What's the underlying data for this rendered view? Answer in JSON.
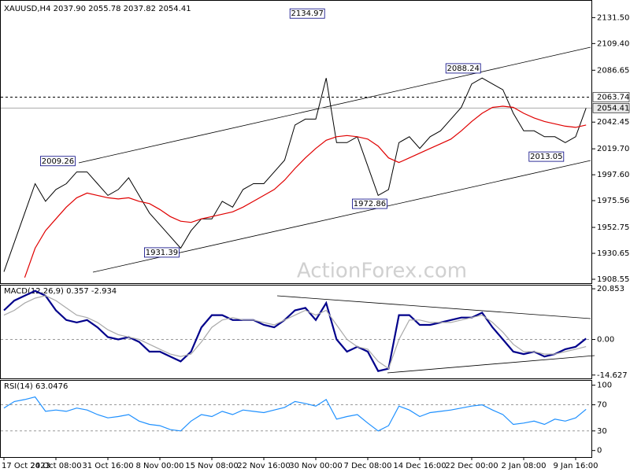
{
  "chart_data": [
    {
      "type": "line",
      "title": "XAUUSD,H4 2037.90 2055.78 2037.82 2054.41",
      "watermark": "ActionForex.com",
      "categories": [
        "17 Oct 2023",
        null,
        null,
        null,
        null,
        "24 Oct 08:00",
        null,
        null,
        null,
        null,
        "31 Oct 16:00",
        null,
        null,
        null,
        null,
        "8 Nov 00:00",
        null,
        null,
        null,
        null,
        "15 Nov 08:00",
        null,
        null,
        null,
        null,
        "22 Nov 16:00",
        null,
        null,
        null,
        null,
        "30 Nov 00:00",
        null,
        null,
        null,
        null,
        "7 Dec 08:00",
        null,
        null,
        null,
        null,
        "14 Dec 16:00",
        null,
        null,
        null,
        null,
        "22 Dec 00:00",
        null,
        null,
        null,
        null,
        "2 Jan 08:00",
        null,
        null,
        null,
        null,
        "9 Jan 16:00",
        null
      ],
      "series": [
        {
          "color": "#000000",
          "values": [
            1915,
            1940,
            1965,
            1990,
            1975,
            1985,
            1990,
            2000,
            2000,
            1990,
            1980,
            1985,
            1995,
            1980,
            1965,
            1955,
            1945,
            1935,
            1950,
            1960,
            1960,
            1975,
            1970,
            1985,
            1990,
            1990,
            2000,
            2010,
            2040,
            2045,
            2045,
            2080,
            2025,
            2025,
            2030,
            2005,
            1980,
            1985,
            2025,
            2030,
            2020,
            2030,
            2035,
            2045,
            2055,
            2075,
            2080,
            2075,
            2070,
            2050,
            2035,
            2035,
            2030,
            2030,
            2025,
            2030,
            2054.41
          ]
        },
        {
          "color": "#e00000",
          "values": [
            null,
            null,
            1910,
            1935,
            1950,
            1960,
            1970,
            1978,
            1982,
            1980,
            1978,
            1977,
            1978,
            1975,
            1973,
            1968,
            1962,
            1958,
            1957,
            1960,
            1962,
            1964,
            1966,
            1970,
            1975,
            1980,
            1985,
            1993,
            2003,
            2012,
            2020,
            2027,
            2030,
            2031,
            2030,
            2028,
            2022,
            2012,
            2008,
            2012,
            2016,
            2020,
            2024,
            2028,
            2035,
            2043,
            2050,
            2055,
            2056,
            2055,
            2050,
            2046,
            2043,
            2041,
            2039,
            2038,
            2040
          ]
        }
      ],
      "annotations": [
        {
          "value": 2134.97,
          "x": 31
        },
        {
          "value": 2009.26,
          "x": 7
        },
        {
          "value": 1931.39,
          "x": 17
        },
        {
          "value": 1972.86,
          "x": 37
        },
        {
          "value": 2088.24,
          "x": 46
        },
        {
          "value": 2013.05,
          "x": 54
        }
      ],
      "levels": [
        {
          "value": 2063.74,
          "dashed": true
        },
        {
          "value": 2054.41,
          "dashed": false
        }
      ],
      "ylim": [
        1905.2,
        2146.5
      ],
      "yticks": [
        {
          "value": 2131.5,
          "label": "2131.50"
        },
        {
          "value": 2109.4,
          "label": "2109.40"
        },
        2086.65,
        2042.45,
        {
          "value": 2019.7,
          "label": "2019.70"
        },
        {
          "value": 1997.6,
          "label": "1997.60"
        },
        1975.56,
        1952.75,
        1930.65,
        1908.55
      ]
    },
    {
      "type": "line",
      "title": "MACD(12,26,9) 0.357 -2.934",
      "series": [
        {
          "color": "#00008b",
          "values": [
            12,
            16,
            18,
            20,
            18,
            12,
            8,
            7,
            8,
            5,
            1,
            0,
            1,
            -1,
            -5,
            -5,
            -7,
            -9,
            -5,
            5,
            10,
            10,
            8,
            8,
            8,
            6,
            5,
            8,
            12,
            13,
            8,
            15,
            0,
            -5,
            -3,
            -5,
            -13,
            -12,
            10,
            10,
            6,
            6,
            7,
            8,
            9,
            9,
            11,
            5,
            0,
            -5,
            -6,
            -5,
            -7,
            -6,
            -4,
            -3,
            0.357
          ]
        },
        {
          "color": "#a9a9a9",
          "values": [
            10,
            12,
            15,
            17,
            18,
            16,
            13,
            10,
            9,
            7,
            4,
            2,
            1,
            0,
            -2,
            -4,
            -6,
            -7,
            -6,
            -1,
            5,
            8,
            9,
            8,
            8,
            7,
            6,
            8,
            10,
            12,
            10,
            12,
            6,
            0,
            -3,
            -4,
            -9,
            -12,
            0,
            8,
            8,
            7,
            7,
            7,
            8,
            9,
            10,
            7,
            3,
            -2,
            -5,
            -5,
            -6,
            -6,
            -5,
            -4,
            -2.934
          ]
        }
      ],
      "ylim": [
        -16,
        22.5
      ],
      "yticks": [
        20.853,
        {
          "value": 0,
          "label": "0.00"
        },
        -14.627
      ]
    },
    {
      "type": "line",
      "title": "RSI(14) 63.0476",
      "series": [
        {
          "color": "#1e90ff",
          "values": [
            65,
            75,
            78,
            82,
            60,
            62,
            60,
            65,
            62,
            55,
            50,
            52,
            55,
            45,
            40,
            38,
            32,
            30,
            45,
            55,
            52,
            60,
            55,
            62,
            60,
            58,
            62,
            66,
            75,
            72,
            68,
            78,
            48,
            52,
            55,
            42,
            30,
            38,
            68,
            62,
            52,
            58,
            60,
            62,
            65,
            68,
            70,
            62,
            55,
            40,
            42,
            45,
            40,
            48,
            45,
            50,
            63.0476
          ]
        }
      ],
      "ylim": [
        -10,
        108
      ],
      "yticks": [
        100,
        70,
        30,
        0
      ]
    }
  ]
}
